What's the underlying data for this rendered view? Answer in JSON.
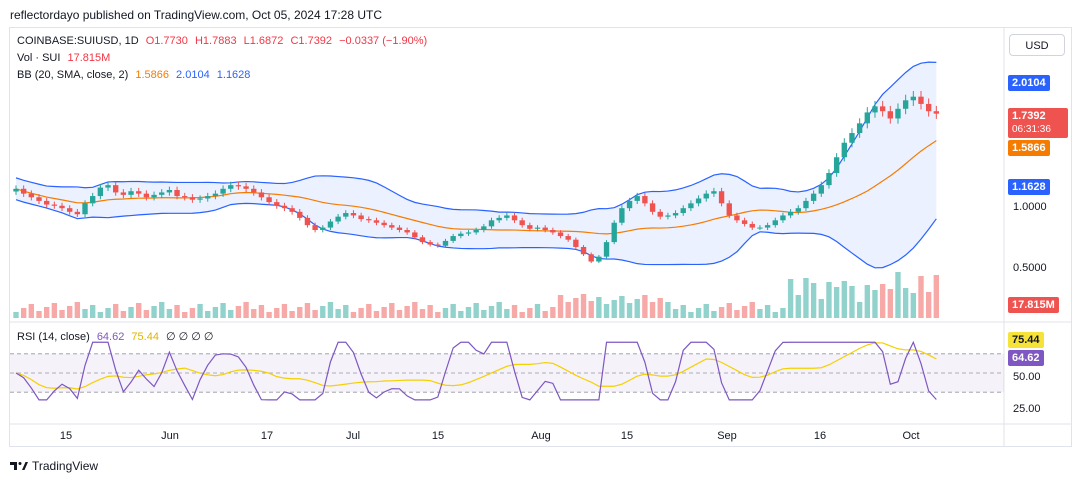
{
  "header": {
    "text": "reflectordayo published on TradingView.com, Oct 05, 2024 17:28 UTC"
  },
  "legend": {
    "symbol": "COINBASE:SUIUSD, 1D",
    "open": "O1.7730",
    "high": "H1.7883",
    "low": "L1.6872",
    "close": "C1.7392",
    "change": "−0.0337 (−1.90%)",
    "vol_label": "Vol · SUI",
    "vol_value": "17.815M",
    "bb_label": "BB (20, SMA, close, 2)",
    "bb_basis": "1.5866",
    "bb_upper": "2.0104",
    "bb_lower": "1.1628",
    "rsi_label": "RSI (14, close)",
    "rsi_value": "64.62",
    "rsi_ma": "75.44",
    "rsi_extra": "∅ ∅ ∅ ∅"
  },
  "currency_button": "USD",
  "price_axis": {
    "labels": [
      "1.0000",
      "0.5000"
    ],
    "tags": {
      "upper": "2.0104",
      "close": "1.7392",
      "countdown": "06:31:36",
      "basis": "1.5866",
      "lower": "1.1628",
      "volume": "17.815M"
    }
  },
  "rsi_axis": {
    "labels": [
      "50.00",
      "25.00"
    ],
    "tags": {
      "ma": "75.44",
      "rsi": "64.62"
    }
  },
  "time_axis": [
    "15",
    "Jun",
    "17",
    "Jul",
    "15",
    "Aug",
    "15",
    "Sep",
    "16",
    "Oct"
  ],
  "footer": {
    "brand": "TradingView"
  },
  "colors": {
    "up": "#26a69a",
    "down": "#ef5350",
    "bb_band": "#2962ff",
    "bb_basis": "#f57c00",
    "rsi": "#7e57c2",
    "rsi_ma": "#f5d000"
  },
  "chart_data": {
    "type": "candlestick",
    "title": "COINBASE:SUIUSD, 1D",
    "close_path": [
      1.12,
      1.08,
      1.05,
      1.02,
      0.99,
      0.98,
      0.96,
      0.93,
      0.91,
      1.0,
      1.06,
      1.13,
      1.15,
      1.09,
      1.07,
      1.1,
      1.08,
      1.05,
      1.07,
      1.09,
      1.11,
      1.06,
      1.05,
      1.03,
      1.04,
      1.06,
      1.08,
      1.12,
      1.15,
      1.14,
      1.12,
      1.09,
      1.05,
      1.01,
      0.98,
      0.96,
      0.93,
      0.88,
      0.82,
      0.78,
      0.8,
      0.85,
      0.89,
      0.92,
      0.9,
      0.87,
      0.86,
      0.84,
      0.82,
      0.8,
      0.78,
      0.76,
      0.72,
      0.68,
      0.66,
      0.65,
      0.69,
      0.73,
      0.75,
      0.76,
      0.78,
      0.81,
      0.86,
      0.88,
      0.9,
      0.86,
      0.82,
      0.79,
      0.8,
      0.78,
      0.76,
      0.73,
      0.7,
      0.64,
      0.58,
      0.52,
      0.56,
      0.68,
      0.84,
      0.96,
      1.02,
      1.06,
      1.0,
      0.93,
      0.89,
      0.9,
      0.92,
      0.96,
      1.0,
      1.04,
      1.08,
      1.1,
      1.0,
      0.9,
      0.86,
      0.83,
      0.8,
      0.8,
      0.82,
      0.86,
      0.9,
      0.93,
      0.96,
      1.02,
      1.08,
      1.15,
      1.25,
      1.38,
      1.5,
      1.58,
      1.66,
      1.75,
      1.8,
      1.76,
      1.7,
      1.78,
      1.85,
      1.88,
      1.82,
      1.76,
      1.74
    ],
    "ylim": [
      0.45,
      2.1
    ],
    "x_ticks": [
      "15",
      "Jun",
      "17",
      "Jul",
      "15",
      "Aug",
      "15",
      "Sep",
      "16",
      "Oct"
    ]
  }
}
